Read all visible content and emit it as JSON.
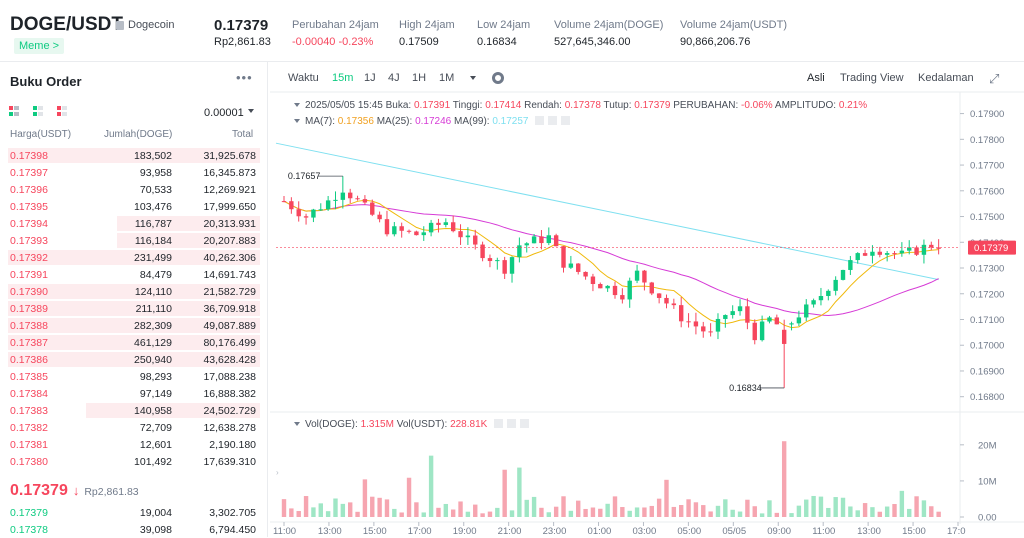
{
  "header": {
    "pair": "DOGE/USDT",
    "coin_name": "Dogecoin",
    "tag": "Meme",
    "tag_arrow": ">",
    "last_price": "0.17379",
    "last_price_idr": "Rp2,861.83",
    "stats": [
      {
        "label": "Perubahan 24jam",
        "value": "-0.00040 -0.23%",
        "color": "red"
      },
      {
        "label": "High 24jam",
        "value": "0.17509",
        "color": ""
      },
      {
        "label": "Low 24jam",
        "value": "0.16834",
        "color": ""
      },
      {
        "label": "Volume 24jam(DOGE)",
        "value": "527,645,346.00",
        "color": ""
      },
      {
        "label": "Volume 24jam(USDT)",
        "value": "90,866,206.76",
        "color": ""
      }
    ]
  },
  "orderbook": {
    "title": "Buku Order",
    "more": "•••",
    "precision": "0.00001",
    "columns": [
      "Harga(USDT)",
      "Jumlah(DOGE)",
      "Total"
    ],
    "asks": [
      {
        "price": "0.17398",
        "amount": "183,502",
        "total": "31,925.678",
        "depth": 0.97
      },
      {
        "price": "0.17397",
        "amount": "93,958",
        "total": "16,345.873",
        "depth": 0.0
      },
      {
        "price": "0.17396",
        "amount": "70,533",
        "total": "12,269.921",
        "depth": 0.0
      },
      {
        "price": "0.17395",
        "amount": "103,476",
        "total": "17,999.650",
        "depth": 0.0
      },
      {
        "price": "0.17394",
        "amount": "116,787",
        "total": "20,313.931",
        "depth": 0.55
      },
      {
        "price": "0.17393",
        "amount": "116,184",
        "total": "20,207.883",
        "depth": 0.55
      },
      {
        "price": "0.17392",
        "amount": "231,499",
        "total": "40,262.306",
        "depth": 0.97
      },
      {
        "price": "0.17391",
        "amount": "84,479",
        "total": "14,691.743",
        "depth": 0.0
      },
      {
        "price": "0.17390",
        "amount": "124,110",
        "total": "21,582.729",
        "depth": 0.97
      },
      {
        "price": "0.17389",
        "amount": "211,110",
        "total": "36,709.918",
        "depth": 0.97
      },
      {
        "price": "0.17388",
        "amount": "282,309",
        "total": "49,087.889",
        "depth": 0.97
      },
      {
        "price": "0.17387",
        "amount": "461,129",
        "total": "80,176.499",
        "depth": 0.97
      },
      {
        "price": "0.17386",
        "amount": "250,940",
        "total": "43,628.428",
        "depth": 0.97
      },
      {
        "price": "0.17385",
        "amount": "98,293",
        "total": "17,088.238",
        "depth": 0.0
      },
      {
        "price": "0.17384",
        "amount": "97,149",
        "total": "16,888.382",
        "depth": 0.0
      },
      {
        "price": "0.17383",
        "amount": "140,958",
        "total": "24,502.729",
        "depth": 0.67
      },
      {
        "price": "0.17382",
        "amount": "72,709",
        "total": "12,638.278",
        "depth": 0.0
      },
      {
        "price": "0.17381",
        "amount": "12,601",
        "total": "2,190.180",
        "depth": 0.0
      },
      {
        "price": "0.17380",
        "amount": "101,492",
        "total": "17,639.310",
        "depth": 0.0
      }
    ],
    "mid_price": "0.17379",
    "mid_arrow": "↓",
    "mid_idr": "Rp2,861.83",
    "bids": [
      {
        "price": "0.17379",
        "amount": "19,004",
        "total": "3,302.705"
      },
      {
        "price": "0.17378",
        "amount": "39,098",
        "total": "6,794.450"
      }
    ]
  },
  "chart_toolbar": {
    "label": "Waktu",
    "intervals": [
      "15m",
      "1J",
      "4J",
      "1H",
      "1M"
    ],
    "active_interval": "15m",
    "views": [
      "Asli",
      "Trading View",
      "Kedalaman"
    ],
    "active_view": "Asli"
  },
  "chart_info": {
    "date": "2025/05/05 15:45",
    "open_label": "Buka:",
    "open": "0.17391",
    "high_label": "Tinggi:",
    "high": "0.17414",
    "low_label": "Rendah:",
    "low": "0.17378",
    "close_label": "Tutup:",
    "close": "0.17379",
    "change_label": "PERUBAHAN:",
    "change": "-0.06%",
    "amp_label": "AMPLITUDO:",
    "amp": "0.21%",
    "ma7_label": "MA(7):",
    "ma7": "0.17356",
    "ma25_label": "MA(25):",
    "ma25": "0.17246",
    "ma99_label": "MA(99):",
    "ma99": "0.17257",
    "vol_label1": "Vol(DOGE):",
    "vol1": "1.315M",
    "vol_label2": "Vol(USDT):",
    "vol2": "228.81K"
  },
  "chart_data": {
    "type": "candlestick",
    "price_axis": [
      "0.17900",
      "0.17800",
      "0.17700",
      "0.17600",
      "0.17500",
      "0.17400",
      "0.17300",
      "0.17200",
      "0.17100",
      "0.17000",
      "0.16900",
      "0.16800"
    ],
    "price_ylim": [
      0.1676,
      0.17945
    ],
    "current_price_label": "0.17379",
    "high_marker": "0.17657",
    "low_marker": "0.16834",
    "volume_axis": [
      "20M",
      "10M",
      "0.00"
    ],
    "volume_ylim": [
      0,
      23
    ],
    "time_axis": [
      "11:00",
      "13:00",
      "15:00",
      "17:00",
      "19:00",
      "21:00",
      "23:00",
      "01:00",
      "03:00",
      "05:00",
      "05/05",
      "09:00",
      "11:00",
      "13:00",
      "15:00",
      "17:0"
    ],
    "colors": {
      "up": "#0ecb81",
      "down": "#f6465d",
      "ma7": "#f0b90b",
      "ma25": "#d63bd6",
      "ma99": "#7fe0f0"
    },
    "ma99": [
      0.17785,
      0.17255
    ]
  }
}
